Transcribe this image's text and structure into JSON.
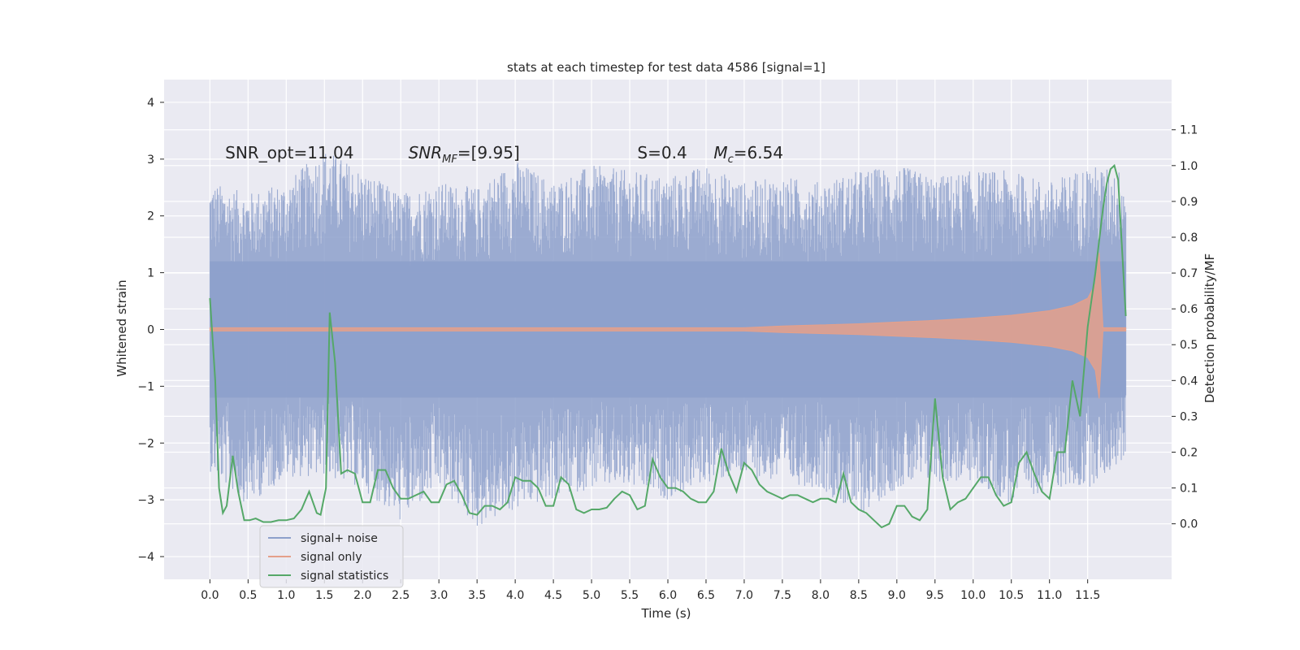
{
  "chart_data": {
    "type": "line",
    "title": "stats at each timestep for test data 4586 [signal=1]",
    "xlabel": "Time (s)",
    "ylabel": "Whitened strain",
    "y2label": "Detection probability/MF",
    "xlim": [
      -0.6,
      12.6
    ],
    "ylim": [
      -4.4,
      4.4
    ],
    "y2lim": [
      -0.155,
      1.24
    ],
    "x_ticks": [
      0.0,
      0.5,
      1.0,
      1.5,
      2.0,
      2.5,
      3.0,
      3.5,
      4.0,
      4.5,
      5.0,
      5.5,
      6.0,
      6.5,
      7.0,
      7.5,
      8.0,
      8.5,
      9.0,
      9.5,
      10.0,
      10.5,
      11.0,
      11.5
    ],
    "y_ticks": [
      -4,
      -3,
      -2,
      -1,
      0,
      1,
      2,
      3,
      4
    ],
    "y2_ticks": [
      0.0,
      0.1,
      0.2,
      0.3,
      0.4,
      0.5,
      0.6,
      0.7,
      0.8,
      0.9,
      1.0,
      1.1
    ],
    "grid": true,
    "legend_position": "lower-left",
    "annotations": [
      {
        "text": "SNR_opt=11.04",
        "x": 0.2,
        "y": 3.1
      },
      {
        "main": "SNR",
        "sub": "MF",
        "rest": "=[9.95]",
        "x": 2.6,
        "y": 3.1
      },
      {
        "text": "S=0.4",
        "x": 5.6,
        "y": 3.1
      },
      {
        "main": "M",
        "sub": "c",
        "rest": "=6.54",
        "x": 6.6,
        "y": 3.1
      }
    ],
    "colors": {
      "background": "#eaeaf2",
      "grid": "#ffffff",
      "noise": "#8da0cb",
      "signal": "#e5a08a",
      "stats": "#55a868"
    },
    "series": [
      {
        "name": "signal+ noise",
        "axis": "left",
        "x_range": [
          0.0,
          12.0
        ],
        "envelope": {
          "x": [
            0,
            0.5,
            1,
            1.5,
            2,
            2.5,
            3,
            3.5,
            4,
            4.5,
            5,
            5.5,
            6,
            6.5,
            7,
            7.5,
            8,
            8.5,
            9,
            9.5,
            10,
            10.5,
            11,
            11.5,
            12
          ],
          "upper": [
            2.6,
            2.4,
            2.6,
            3.2,
            2.8,
            2.4,
            2.6,
            2.5,
            3.0,
            2.6,
            2.9,
            2.8,
            2.7,
            2.9,
            2.6,
            2.7,
            2.6,
            2.8,
            2.9,
            2.7,
            2.8,
            2.8,
            2.6,
            2.9,
            2.8
          ],
          "lower": [
            -2.5,
            -3.1,
            -2.6,
            -2.6,
            -2.8,
            -3.4,
            -2.8,
            -3.5,
            -3.2,
            -3.0,
            -2.8,
            -2.8,
            -3.0,
            -2.7,
            -2.6,
            -2.7,
            -2.8,
            -3.3,
            -2.8,
            -2.7,
            -2.7,
            -3.1,
            -2.8,
            -2.8,
            -2.3
          ]
        }
      },
      {
        "name": "signal only",
        "axis": "left",
        "x": [
          0,
          7.0,
          7.5,
          8.0,
          8.5,
          9.0,
          9.5,
          10.0,
          10.5,
          11.0,
          11.3,
          11.5,
          11.6,
          11.65,
          11.7,
          12.0
        ],
        "amplitude": [
          0.03,
          0.03,
          0.06,
          0.08,
          0.1,
          0.13,
          0.16,
          0.2,
          0.25,
          0.33,
          0.42,
          0.55,
          0.8,
          1.35,
          0.03,
          0.03
        ]
      },
      {
        "name": "signal statistics",
        "axis": "right",
        "x": [
          0,
          0.07,
          0.12,
          0.17,
          0.22,
          0.3,
          0.37,
          0.45,
          0.52,
          0.6,
          0.7,
          0.8,
          0.9,
          1.0,
          1.1,
          1.2,
          1.3,
          1.4,
          1.45,
          1.52,
          1.57,
          1.64,
          1.72,
          1.8,
          1.9,
          2.0,
          2.1,
          2.2,
          2.3,
          2.4,
          2.5,
          2.6,
          2.7,
          2.8,
          2.9,
          3.0,
          3.1,
          3.2,
          3.3,
          3.4,
          3.5,
          3.6,
          3.7,
          3.8,
          3.9,
          4.0,
          4.1,
          4.2,
          4.3,
          4.4,
          4.5,
          4.6,
          4.7,
          4.8,
          4.9,
          5.0,
          5.1,
          5.2,
          5.3,
          5.4,
          5.5,
          5.6,
          5.7,
          5.8,
          5.9,
          6.0,
          6.1,
          6.2,
          6.3,
          6.4,
          6.5,
          6.6,
          6.7,
          6.8,
          6.9,
          7.0,
          7.1,
          7.2,
          7.3,
          7.4,
          7.5,
          7.6,
          7.7,
          7.8,
          7.9,
          8.0,
          8.1,
          8.2,
          8.3,
          8.4,
          8.5,
          8.6,
          8.7,
          8.8,
          8.9,
          9.0,
          9.1,
          9.2,
          9.3,
          9.4,
          9.5,
          9.6,
          9.7,
          9.8,
          9.9,
          10.0,
          10.1,
          10.2,
          10.3,
          10.4,
          10.5,
          10.6,
          10.7,
          10.8,
          10.9,
          11.0,
          11.1,
          11.2,
          11.3,
          11.4,
          11.5,
          11.6,
          11.7,
          11.75,
          11.8,
          11.85,
          11.9,
          12.0
        ],
        "values": [
          0.63,
          0.4,
          0.1,
          0.03,
          0.05,
          0.19,
          0.09,
          0.01,
          0.01,
          0.015,
          0.005,
          0.005,
          0.01,
          0.01,
          0.015,
          0.04,
          0.09,
          0.03,
          0.025,
          0.1,
          0.59,
          0.45,
          0.14,
          0.15,
          0.14,
          0.06,
          0.06,
          0.15,
          0.15,
          0.1,
          0.07,
          0.07,
          0.08,
          0.09,
          0.06,
          0.06,
          0.11,
          0.12,
          0.08,
          0.03,
          0.025,
          0.05,
          0.05,
          0.04,
          0.06,
          0.13,
          0.12,
          0.12,
          0.1,
          0.05,
          0.05,
          0.13,
          0.11,
          0.04,
          0.03,
          0.04,
          0.04,
          0.045,
          0.07,
          0.09,
          0.08,
          0.04,
          0.05,
          0.18,
          0.13,
          0.1,
          0.1,
          0.09,
          0.07,
          0.06,
          0.06,
          0.09,
          0.21,
          0.14,
          0.09,
          0.17,
          0.15,
          0.11,
          0.09,
          0.08,
          0.07,
          0.08,
          0.08,
          0.07,
          0.06,
          0.07,
          0.07,
          0.06,
          0.14,
          0.06,
          0.04,
          0.03,
          0.01,
          -0.01,
          0.0,
          0.05,
          0.05,
          0.02,
          0.01,
          0.04,
          0.35,
          0.13,
          0.04,
          0.06,
          0.07,
          0.1,
          0.13,
          0.13,
          0.08,
          0.05,
          0.06,
          0.17,
          0.2,
          0.14,
          0.09,
          0.07,
          0.2,
          0.2,
          0.4,
          0.3,
          0.55,
          0.7,
          0.88,
          0.95,
          0.99,
          1.0,
          0.96,
          0.58
        ]
      }
    ]
  }
}
